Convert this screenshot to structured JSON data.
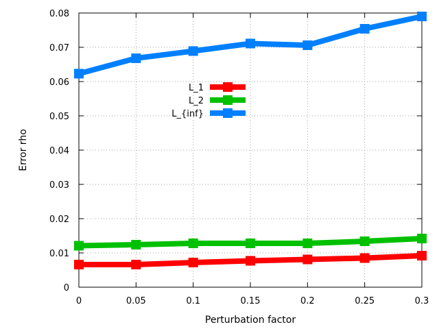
{
  "chart_data": {
    "type": "line",
    "title": "",
    "xlabel": "Perturbation factor",
    "ylabel": "Error rho",
    "x": [
      0,
      0.05,
      0.1,
      0.15,
      0.2,
      0.25,
      0.3
    ],
    "x_tick_labels": [
      "0",
      "0.05",
      "0.1",
      "0.15",
      "0.2",
      "0.25",
      "0.3"
    ],
    "y_tick_labels": [
      "0",
      "0.01",
      "0.02",
      "0.03",
      "0.04",
      "0.05",
      "0.06",
      "0.07",
      "0.08"
    ],
    "y_ticks": [
      0,
      0.01,
      0.02,
      0.03,
      0.04,
      0.05,
      0.06,
      0.07,
      0.08
    ],
    "xlim": [
      0,
      0.3
    ],
    "ylim": [
      0,
      0.08
    ],
    "grid": true,
    "legend_position": "center-left",
    "series": [
      {
        "name": "L_1",
        "color": "#ff0000",
        "values": [
          0.0066,
          0.0066,
          0.0072,
          0.0077,
          0.0081,
          0.0085,
          0.0092
        ]
      },
      {
        "name": "L_2",
        "color": "#00c000",
        "values": [
          0.0121,
          0.0124,
          0.0128,
          0.0128,
          0.0128,
          0.0134,
          0.0142
        ]
      },
      {
        "name": "L_{inf}",
        "color": "#0080ff",
        "values": [
          0.0623,
          0.0668,
          0.0689,
          0.0711,
          0.0706,
          0.0754,
          0.079
        ]
      }
    ]
  }
}
